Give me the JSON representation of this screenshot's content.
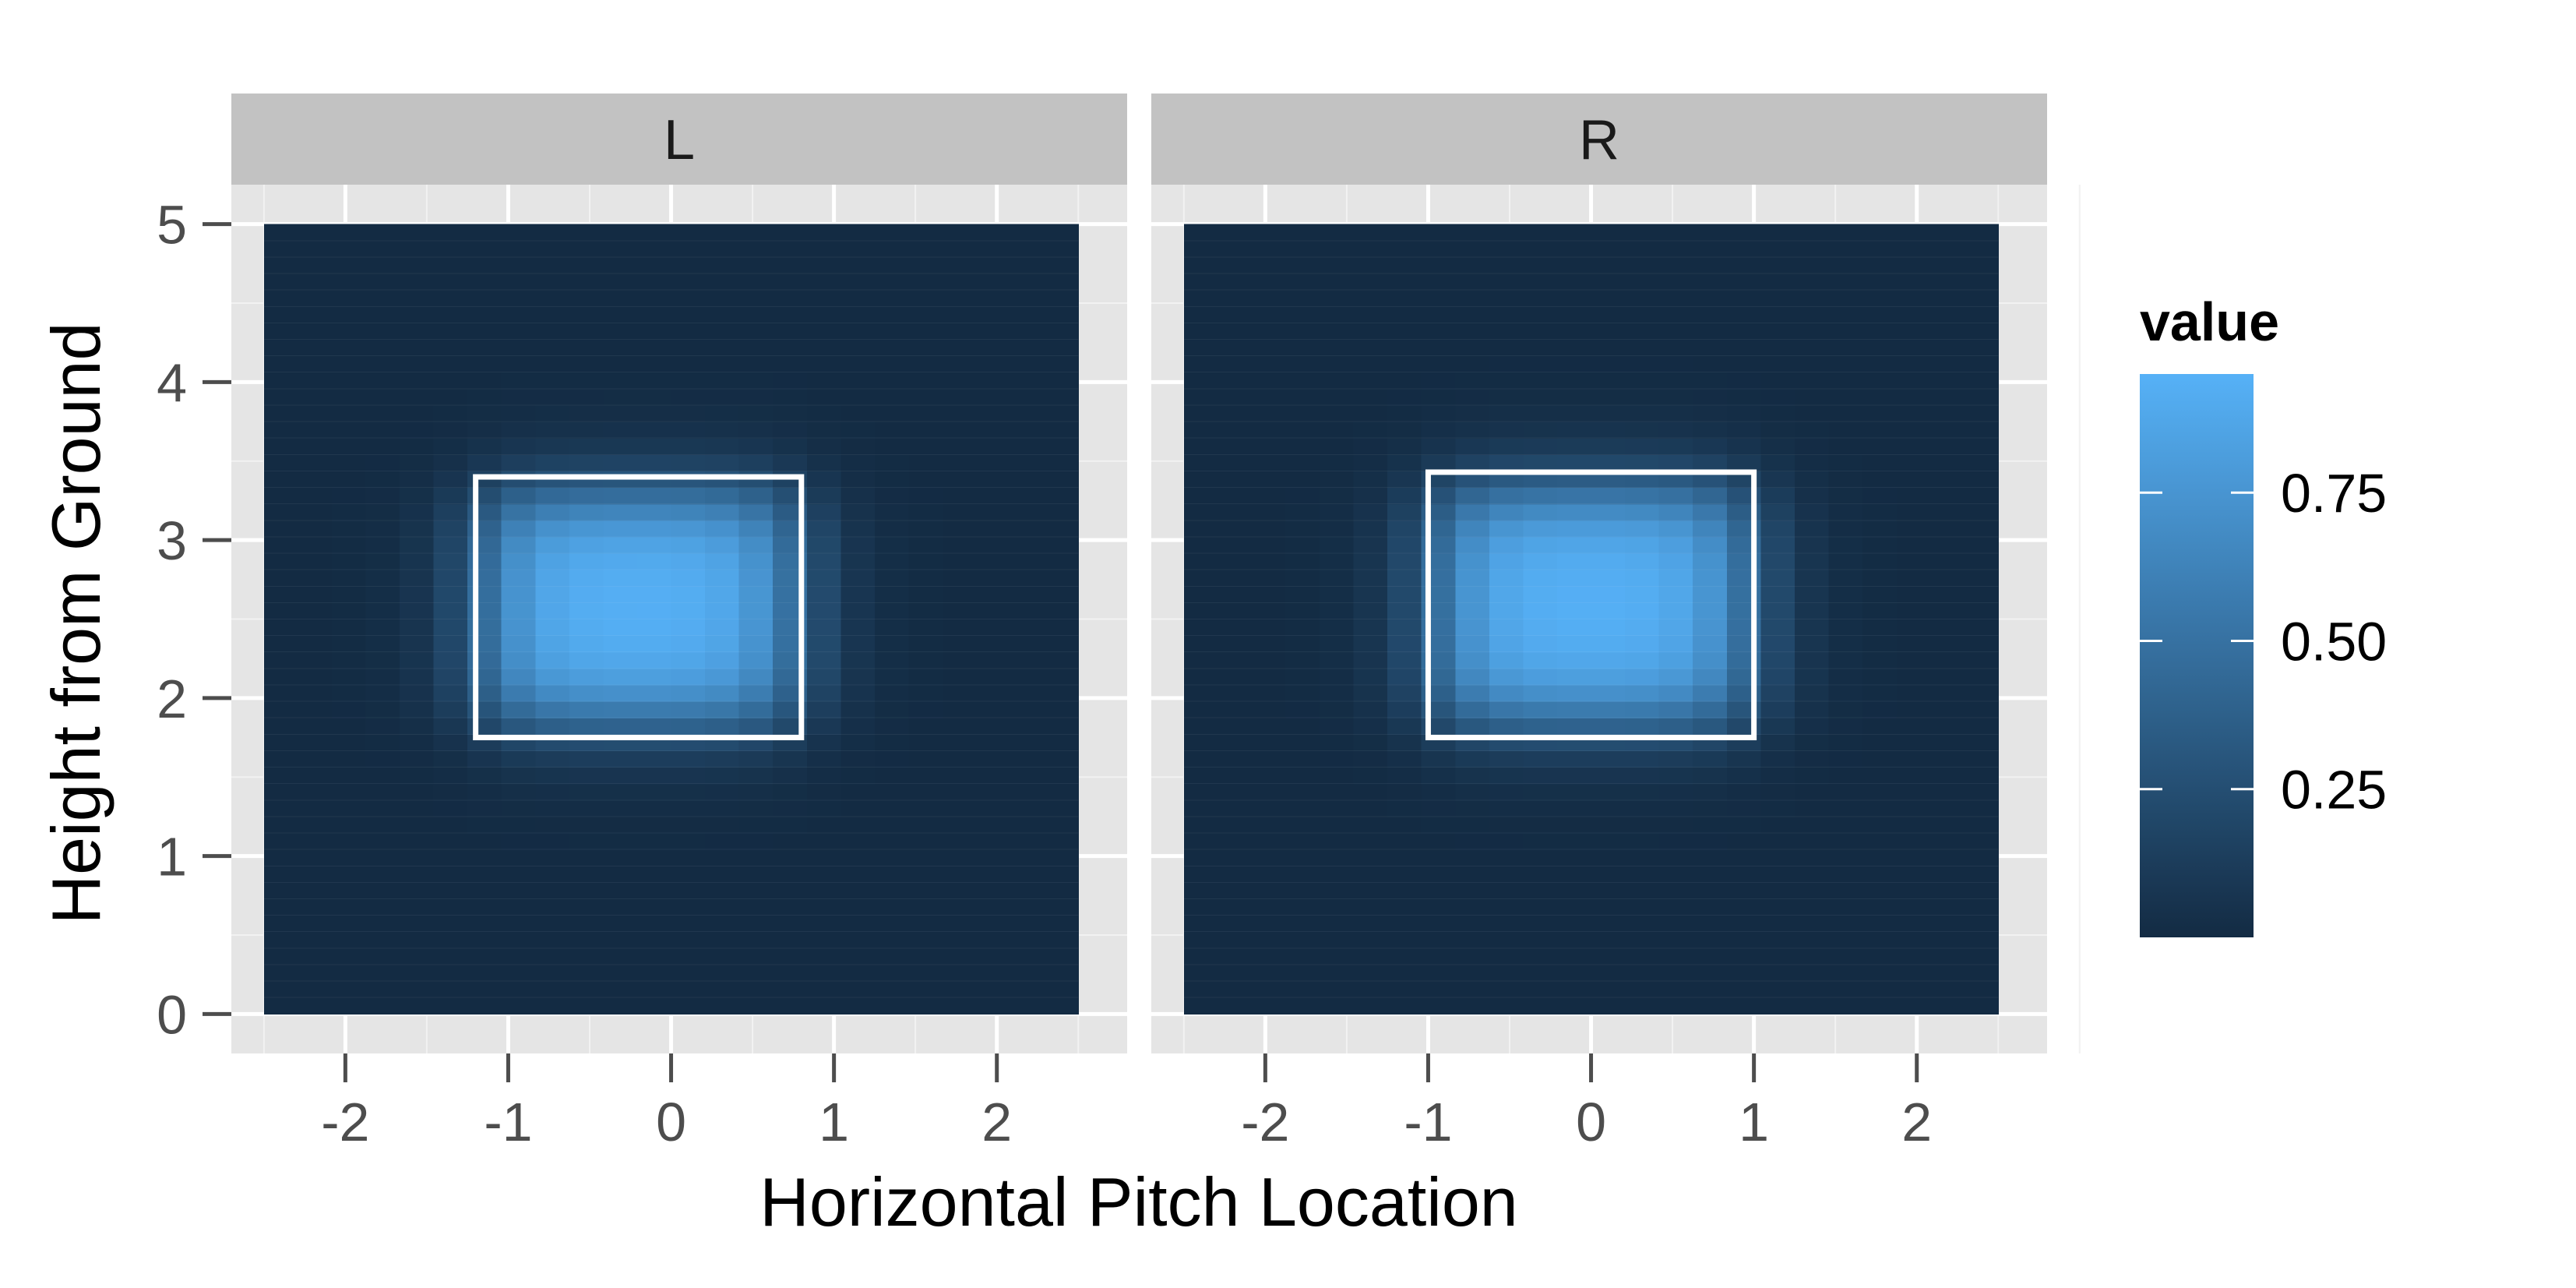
{
  "chart_data": {
    "type": "heatmap",
    "xlabel": "Horizontal Pitch Location",
    "ylabel": "Height from Ground",
    "x_ticks": [
      "-2",
      "-1",
      "0",
      "1",
      "2"
    ],
    "y_ticks": [
      "0",
      "1",
      "2",
      "3",
      "4",
      "5"
    ],
    "xlim": [
      -2.7,
      2.8
    ],
    "ylim": [
      -0.25,
      5.25
    ],
    "tile_extent": {
      "x": [
        -2.5,
        2.5
      ],
      "y": [
        0,
        5
      ]
    },
    "grid": true,
    "facets": [
      {
        "label": "L",
        "strike_zone": {
          "x": [
            -1.2,
            0.8
          ],
          "y": [
            1.75,
            3.4
          ]
        },
        "peak": {
          "x": -0.2,
          "y": 2.55
        },
        "peak_value": 0.95
      },
      {
        "label": "R",
        "strike_zone": {
          "x": [
            -1.0,
            1.0
          ],
          "y": [
            1.75,
            3.43
          ]
        },
        "peak": {
          "x": 0.0,
          "y": 2.6
        },
        "peak_value": 0.95
      }
    ],
    "legend": {
      "title": "value",
      "position": "right",
      "breaks": [
        0.25,
        0.5,
        0.75
      ],
      "labels": [
        "0.75",
        "0.50",
        "0.25"
      ],
      "range": [
        0.0,
        0.95
      ],
      "color_low": "#132b43",
      "color_high": "#56b1f7"
    },
    "colors": {
      "panel_bg": "#e5e5e5",
      "strip_bg": "#c2c2c2",
      "grid": "#ffffff",
      "zone_outline": "#ffffff"
    }
  }
}
